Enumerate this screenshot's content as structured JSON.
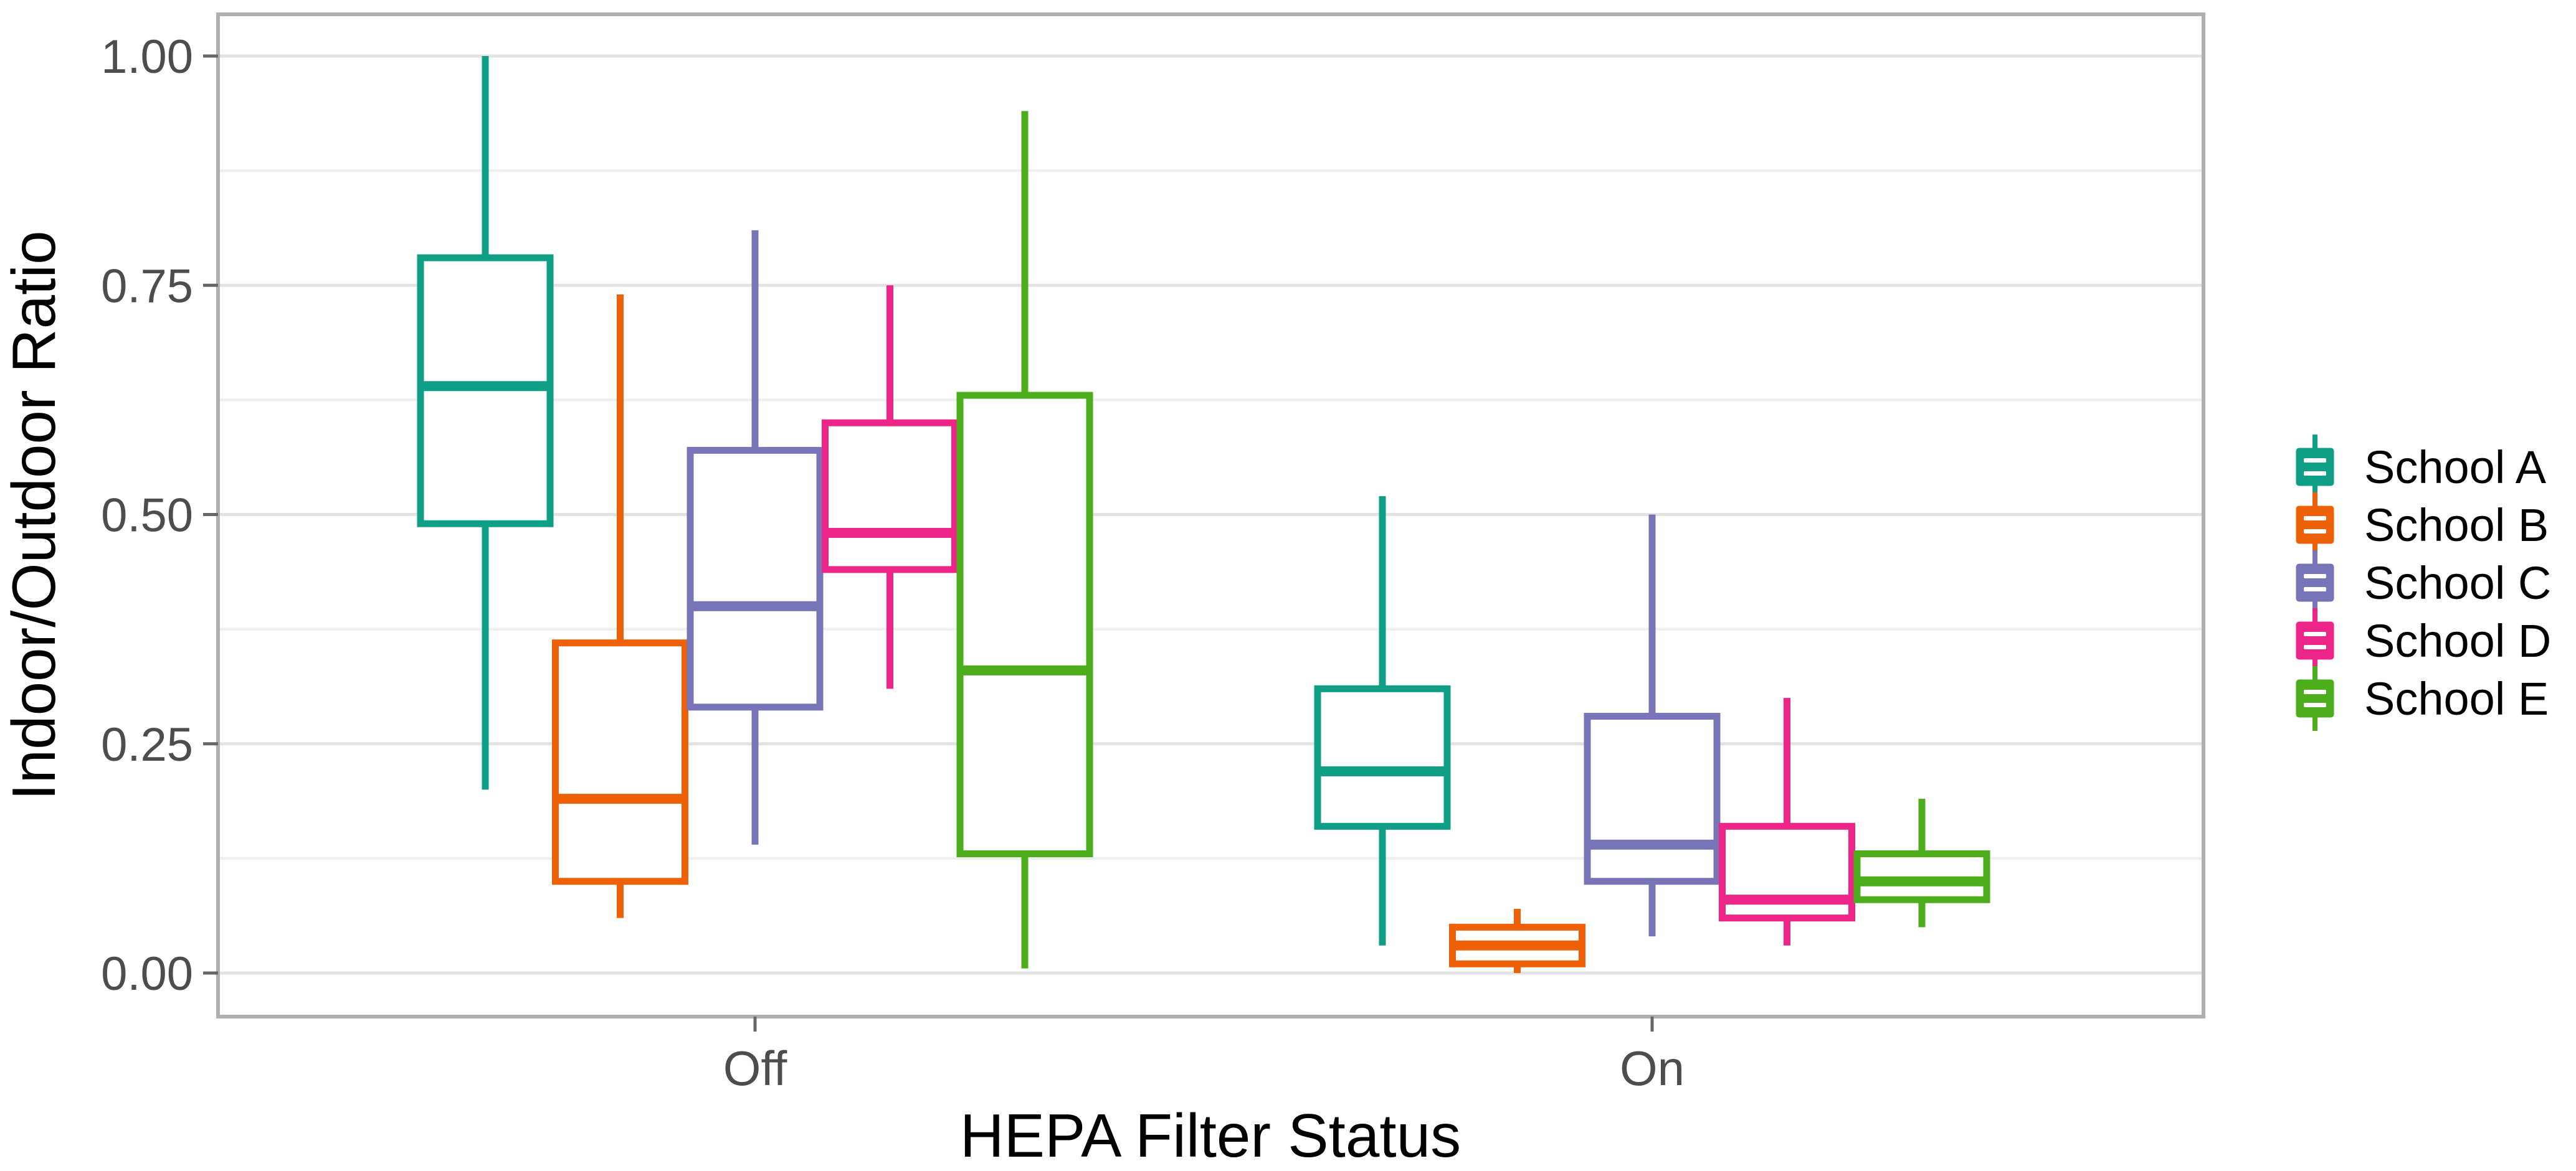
{
  "chart_data": {
    "type": "boxplot",
    "title": "",
    "xlabel": "HEPA Filter Status",
    "ylabel": "Indoor/Outdoor Ratio",
    "categories": [
      "Off",
      "On"
    ],
    "y_axis": {
      "tick_labels": [
        "0.00",
        "0.25",
        "0.50",
        "0.75",
        "1.00"
      ],
      "tick_values": [
        0,
        0.25,
        0.5,
        0.75,
        1.0
      ],
      "minor_gridline_values": [
        0.125,
        0.375,
        0.625,
        0.875
      ],
      "ylim": [
        -0.05,
        1.05
      ],
      "grid": true
    },
    "legend_position": "right",
    "series": [
      {
        "name": "School A",
        "color": "#0e9f86",
        "boxes": [
          {
            "category": "Off",
            "min": 0.2,
            "q1": 0.49,
            "median": 0.64,
            "q3": 0.78,
            "max": 1.0
          },
          {
            "category": "On",
            "min": 0.03,
            "q1": 0.16,
            "median": 0.22,
            "q3": 0.31,
            "max": 0.52
          }
        ]
      },
      {
        "name": "School B",
        "color": "#ee6109",
        "boxes": [
          {
            "category": "Off",
            "min": 0.06,
            "q1": 0.1,
            "median": 0.19,
            "q3": 0.36,
            "max": 0.74
          },
          {
            "category": "On",
            "min": 0.0,
            "q1": 0.01,
            "median": 0.03,
            "q3": 0.05,
            "max": 0.07
          }
        ]
      },
      {
        "name": "School C",
        "color": "#7874b8",
        "boxes": [
          {
            "category": "Off",
            "min": 0.14,
            "q1": 0.29,
            "median": 0.4,
            "q3": 0.57,
            "max": 0.81
          },
          {
            "category": "On",
            "min": 0.04,
            "q1": 0.1,
            "median": 0.14,
            "q3": 0.28,
            "max": 0.5
          }
        ]
      },
      {
        "name": "School D",
        "color": "#ee2588",
        "boxes": [
          {
            "category": "Off",
            "min": 0.31,
            "q1": 0.44,
            "median": 0.48,
            "q3": 0.6,
            "max": 0.75
          },
          {
            "category": "On",
            "min": 0.03,
            "q1": 0.06,
            "median": 0.08,
            "q3": 0.16,
            "max": 0.3
          }
        ]
      },
      {
        "name": "School E",
        "color": "#4bae1a",
        "boxes": [
          {
            "category": "Off",
            "min": 0.005,
            "q1": 0.13,
            "median": 0.33,
            "q3": 0.63,
            "max": 0.94
          },
          {
            "category": "On",
            "min": 0.05,
            "q1": 0.08,
            "median": 0.1,
            "q3": 0.13,
            "max": 0.19
          }
        ]
      }
    ],
    "legend_labels": [
      "School A",
      "School B",
      "School C",
      "School D",
      "School E"
    ],
    "colors": {
      "axis_text": "#4d4d4d",
      "axis_title": "#000000",
      "panel_border": "#b0b0b0",
      "gridline_major": "#e3e3e3",
      "gridline_minor": "#efefef",
      "tick_mark": "#666666",
      "background": "#ffffff"
    }
  }
}
